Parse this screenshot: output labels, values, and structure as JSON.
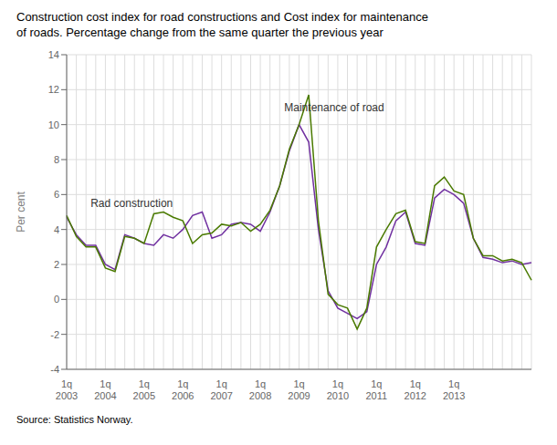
{
  "chart_data": {
    "type": "line",
    "title": "Construction cost index for road constructions and Cost index for maintenance\nof roads. Percentage change from the same quarter the previous year",
    "y_label": "Per cent",
    "source": "Source: Statistics Norway.",
    "ylim": [
      -4,
      14
    ],
    "yticks": [
      -4,
      -2,
      0,
      2,
      4,
      6,
      8,
      10,
      12,
      14
    ],
    "grid": true,
    "categories": [
      "1q\n2003",
      null,
      null,
      null,
      "1q\n2004",
      null,
      null,
      null,
      "1q\n2005",
      null,
      null,
      null,
      "1q\n2006",
      null,
      null,
      null,
      "1q\n2007",
      null,
      null,
      null,
      "1q\n2008",
      null,
      null,
      null,
      "1q\n2009",
      null,
      null,
      null,
      "1q\n2010",
      null,
      null,
      null,
      "1q\n2011",
      null,
      null,
      null,
      "1q\n2012",
      null,
      null,
      null,
      "1q\n2013",
      null,
      null,
      null,
      null,
      null,
      null,
      null,
      null
    ],
    "series": [
      {
        "color": "#7030a0",
        "values": [
          4.7,
          3.7,
          3.1,
          3.1,
          2.0,
          1.7,
          3.7,
          3.5,
          3.2,
          3.1,
          3.7,
          3.5,
          4.0,
          4.8,
          5.0,
          3.5,
          3.7,
          4.3,
          4.4,
          4.3,
          3.9,
          5.0,
          6.5,
          8.5,
          10.0,
          9.0,
          4.0,
          0.5,
          -0.5,
          -0.8,
          -1.1,
          -0.7,
          2.0,
          3.0,
          4.5,
          5.0,
          3.2,
          3.1,
          5.8,
          6.3,
          6.0,
          5.5,
          3.5,
          2.4,
          2.3,
          2.1,
          2.2,
          2.0,
          2.1
        ]
      },
      {
        "color": "#4a7a00",
        "values": [
          4.8,
          3.6,
          3.0,
          3.0,
          1.8,
          1.6,
          3.6,
          3.5,
          3.2,
          4.9,
          5.0,
          4.7,
          4.5,
          3.2,
          3.7,
          3.8,
          4.3,
          4.2,
          4.4,
          3.9,
          4.3,
          5.1,
          6.5,
          8.6,
          10.0,
          11.7,
          4.5,
          0.3,
          -0.3,
          -0.5,
          -1.7,
          -0.5,
          3.0,
          4.0,
          4.9,
          5.1,
          3.3,
          3.2,
          6.5,
          7.0,
          6.2,
          6.0,
          3.5,
          2.5,
          2.5,
          2.2,
          2.3,
          2.1,
          1.1
        ]
      }
    ],
    "annotations": [
      {
        "text": "Maintenance of road",
        "x": 22,
        "y": 11.0
      },
      {
        "text": "Rad construction",
        "x": 2,
        "y": 5.5
      }
    ]
  }
}
